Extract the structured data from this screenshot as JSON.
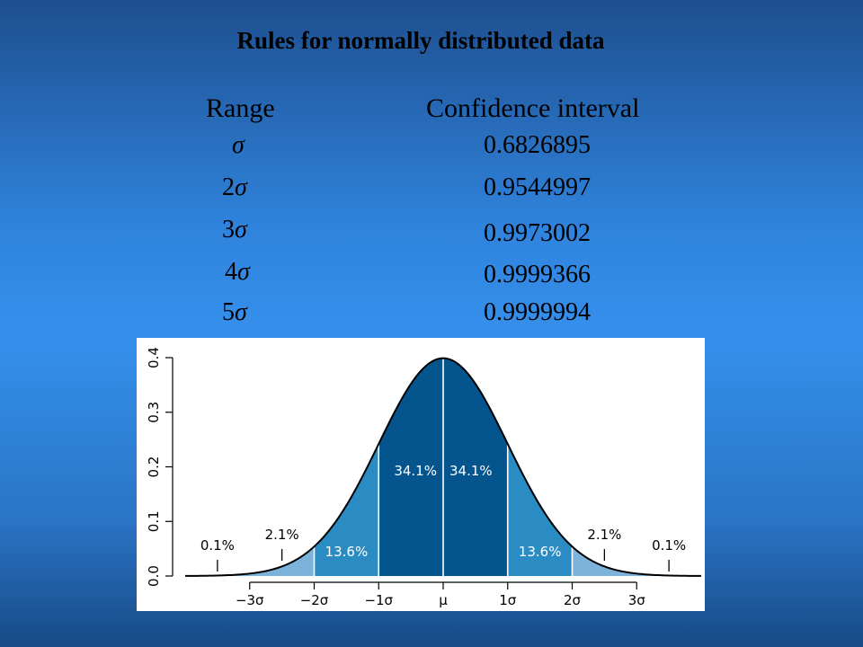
{
  "title": "Rules for normally distributed data",
  "table": {
    "headers": {
      "range": "Range",
      "confidence": "Confidence interval"
    },
    "rows": [
      {
        "mult": "",
        "sigma": "σ",
        "value": "0.6826895"
      },
      {
        "mult": "2",
        "sigma": "σ",
        "value": "0.9544997"
      },
      {
        "mult": "3",
        "sigma": "σ",
        "value": "0.9973002"
      },
      {
        "mult": "4",
        "sigma": "σ",
        "value": "0.9999366"
      },
      {
        "mult": "5",
        "sigma": "σ",
        "value": "0.9999994"
      }
    ]
  },
  "chart_data": {
    "type": "area",
    "x": [
      -4,
      -3,
      -2,
      -1,
      0,
      1,
      2,
      3,
      4
    ],
    "y": [
      0.000134,
      0.004432,
      0.053991,
      0.241971,
      0.398942,
      0.241971,
      0.053991,
      0.004432,
      0.000134
    ],
    "xlim": [
      -4,
      4
    ],
    "ylim": [
      0,
      0.4
    ],
    "x_tick_labels": [
      "−3σ",
      "−2σ",
      "−1σ",
      "μ",
      "1σ",
      "2σ",
      "3σ"
    ],
    "y_tick_labels": [
      "0.0",
      "0.1",
      "0.2",
      "0.3",
      "0.4"
    ],
    "region_labels": [
      "0.1%",
      "2.1%",
      "13.6%",
      "34.1%",
      "34.1%",
      "13.6%",
      "2.1%",
      "0.1%"
    ],
    "colors": {
      "inner": "#04548e",
      "middle": "#2b8cc3",
      "outer": "#7db3db",
      "curve": "#000000"
    }
  }
}
